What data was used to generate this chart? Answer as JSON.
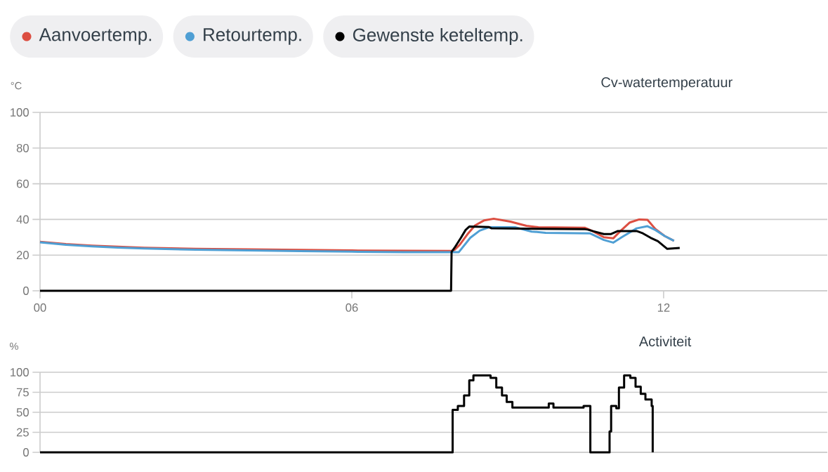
{
  "chart_data": [
    {
      "type": "line",
      "title": "Cv-watertemperatuur",
      "ylabel": "°C",
      "series": [
        {
          "name": "Aanvoertemp.",
          "color": "#dc4e41",
          "x": [
            0,
            0.5,
            1,
            1.5,
            2,
            3,
            4,
            5,
            6,
            7,
            7.9,
            7.97,
            8.08,
            8.24,
            8.37,
            8.55,
            8.73,
            9.05,
            9.36,
            9.59,
            10.49,
            10.63,
            10.85,
            11.03,
            11.17,
            11.35,
            11.53,
            11.69,
            11.84,
            12.02,
            12.2
          ],
          "values": [
            27.5,
            26.2,
            25.3,
            24.7,
            24.1,
            23.5,
            23.2,
            22.9,
            22.6,
            22.4,
            22.3,
            22.8,
            25.9,
            32.2,
            36.6,
            39.5,
            40.4,
            38.8,
            36.4,
            35.6,
            35.3,
            33.5,
            30,
            29.4,
            33.5,
            38.3,
            40,
            39.8,
            34.7,
            30.7,
            28
          ]
        },
        {
          "name": "Retourtemp.",
          "color": "#4f9fd4",
          "x": [
            0,
            0.5,
            1,
            1.5,
            2,
            3,
            4,
            5,
            6,
            7,
            8.06,
            8.28,
            8.46,
            8.64,
            9.14,
            9.46,
            9.73,
            10.58,
            10.85,
            11.03,
            11.21,
            11.48,
            11.69,
            11.84,
            12.02,
            12.2
          ],
          "values": [
            27.2,
            25.8,
            24.9,
            24.2,
            23.7,
            23,
            22.6,
            22.2,
            21.9,
            21.7,
            21.7,
            29.7,
            33.7,
            35.6,
            35.6,
            33.2,
            32.5,
            32.2,
            28.5,
            27,
            30.3,
            35,
            36.2,
            34.1,
            30.7,
            28
          ]
        },
        {
          "name": "Gewenste keteltemp.",
          "color": "#000000",
          "x": [
            0,
            7.91,
            7.92,
            7.99,
            8.1,
            8.19,
            8.26,
            8.64,
            8.69,
            10.49,
            10.54,
            10.63,
            10.85,
            10.99,
            11.12,
            11.48,
            11.6,
            11.75,
            11.89,
            12.07,
            12.31
          ],
          "values": [
            0,
            0,
            21.8,
            24.7,
            29.7,
            34.1,
            36,
            35.7,
            35,
            34.5,
            34.3,
            33.5,
            31.8,
            31.8,
            33.5,
            33.5,
            32.2,
            29.7,
            27.8,
            23.5,
            24
          ]
        }
      ],
      "xlim": [
        0,
        15.15
      ],
      "ylim": [
        0,
        100
      ],
      "xticks": [
        {
          "value": 0,
          "label": "00"
        },
        {
          "value": 6,
          "label": "06"
        },
        12
      ],
      "yticks": [
        0,
        20,
        40,
        60,
        80,
        100
      ],
      "grid": "y",
      "legend": "top left"
    },
    {
      "type": "step",
      "title": "Activiteit",
      "ylabel": "%",
      "series": [
        {
          "color": "#000000",
          "x": [
            0,
            7.94,
            8.04,
            8.16,
            8.26,
            8.34,
            8.67,
            8.78,
            8.89,
            8.98,
            9.09,
            9.79,
            9.88,
            10.46,
            10.59,
            10.96,
            10.99,
            11.09,
            11.14,
            11.24,
            11.36,
            11.46,
            11.56,
            11.65,
            11.77,
            11.79
          ],
          "values": [
            0,
            53,
            58,
            71,
            90,
            96,
            93,
            81,
            71,
            63,
            56,
            61,
            56,
            58,
            0,
            26,
            58,
            55,
            81,
            96,
            93,
            82,
            73,
            66,
            58,
            0
          ]
        }
      ],
      "xlim": [
        0,
        15.15
      ],
      "ylim": [
        0,
        100
      ],
      "yticks": [
        0,
        25,
        50,
        75,
        100
      ],
      "grid": "y",
      "tick_labels": "y"
    }
  ]
}
